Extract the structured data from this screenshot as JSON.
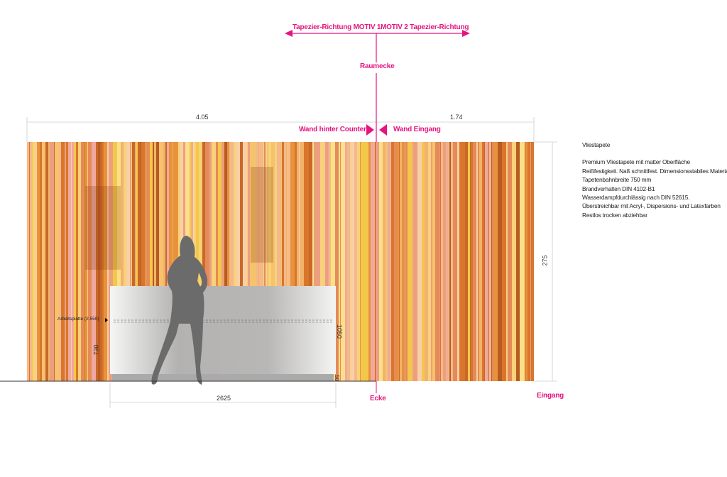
{
  "header": {
    "motiv1_label": "Tapezier-Richtung MOTIV 1",
    "motiv2_label": "MOTIV 2 Tapezier-Richtung",
    "corner_label": "Raumecke",
    "wall_left_label": "Wand hinter Counter",
    "wall_right_label": "Wand Eingang"
  },
  "dimensions": {
    "wall_left_width": "4.05",
    "wall_right_width": "1.74",
    "wall_height": "275",
    "counter_width": "2625",
    "counter_height": "1050",
    "worktop_height": "730",
    "plinth": "50",
    "worktop_label": "Arbeitsplatte (2.550)"
  },
  "floor_labels": {
    "corner": "Ecke",
    "entrance": "Eingang"
  },
  "notes": {
    "title": "Vliestapete",
    "lines": [
      "Premium Vliestapete mit matter Oberfläche",
      "Reißfestigkeit. Naß schnittfest. Dimensionsstabiles Material.",
      "Tapetenbahnbreite 750 mm",
      "Brandverhalten DIN 4102-B1",
      "Wasserdampfdurchlässig nach DIN 52615.",
      "Überstreichbar mit Acryl-, Dispersions- und Latexfarben",
      "Restlos trocken abziehbar"
    ]
  },
  "colors": {
    "accent": "#e6147f",
    "stripe_palette": [
      "#f2b36b",
      "#e8923a",
      "#f5c26e",
      "#d9762b",
      "#f0a8a0",
      "#f7d27a",
      "#c8692a",
      "#f4b98a",
      "#fbe08a",
      "#e58a5a",
      "#f9cfa8",
      "#b85a22",
      "#f3c84a",
      "#ec9f7e"
    ],
    "silhouette": "#6b6b6b",
    "counter": "#bdbcbb"
  }
}
